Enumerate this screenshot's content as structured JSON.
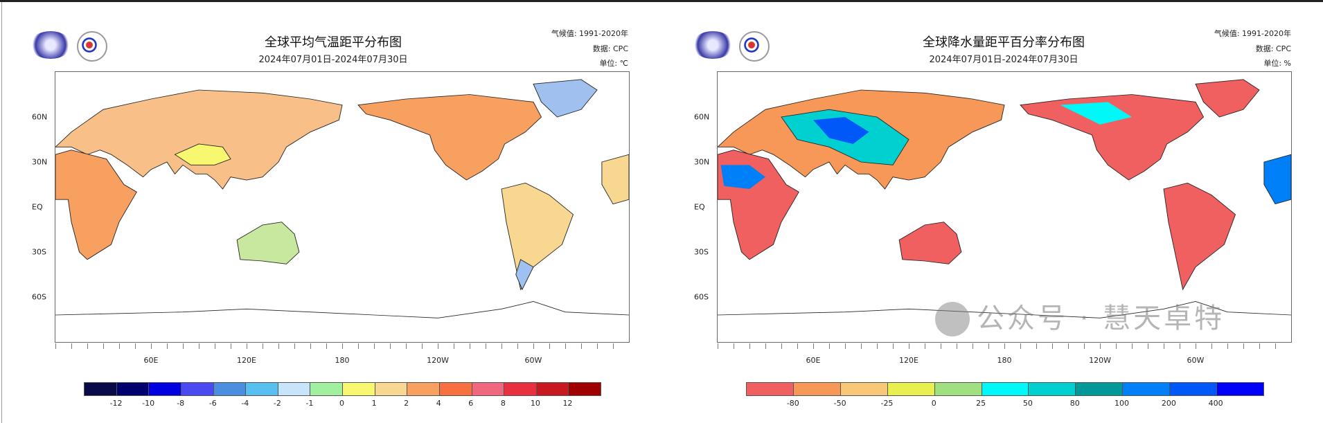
{
  "watermark": "公众号 · 慧天卓特",
  "lat_labels": [
    "60N",
    "30N",
    "EQ",
    "30S",
    "60S"
  ],
  "lon_labels": [
    "60E",
    "120E",
    "180",
    "120W",
    "60W"
  ],
  "chart_data": [
    {
      "type": "heatmap",
      "title": "全球平均气温距平分布图",
      "subtitle": "2024年07月01日-2024年07月30日",
      "info": {
        "climatology": "气候值: 1991-2020年",
        "source": "数据: CPC",
        "unit": "单位: ℃"
      },
      "xlim": [
        "0",
        "360"
      ],
      "ylim": [
        "90S",
        "90N"
      ],
      "projection": "equirectangular, 0-360E",
      "colorbar": {
        "labels": [
          "-12",
          "-10",
          "-8",
          "-6",
          "-4",
          "-2",
          "-1",
          "0",
          "1",
          "2",
          "4",
          "6",
          "8",
          "10",
          "12"
        ],
        "colors": [
          "#0a0a48",
          "#00006e",
          "#0000e0",
          "#4a4af0",
          "#4a8ee0",
          "#58c0f0",
          "#c8e4fa",
          "#a0f0a0",
          "#f8f870",
          "#f8d890",
          "#f8a060",
          "#f87040",
          "#f06880",
          "#e83040",
          "#c81820",
          "#a00000"
        ]
      },
      "dominant": "land mostly +1 to +4 ℃ anomaly; cool patches in northern Canada/Greenland and southern South America"
    },
    {
      "type": "heatmap",
      "title": "全球降水量距平百分率分布图",
      "subtitle": "2024年07月01日-2024年07月30日",
      "info": {
        "climatology": "气候值: 1991-2020年",
        "source": "数据: CPC",
        "unit": "单位: %"
      },
      "xlim": [
        "0",
        "360"
      ],
      "ylim": [
        "90S",
        "90N"
      ],
      "projection": "equirectangular, 0-360E",
      "colorbar": {
        "labels": [
          "-80",
          "-50",
          "-25",
          "0",
          "25",
          "50",
          "80",
          "100",
          "200",
          "400"
        ],
        "colors": [
          "#f06060",
          "#f89858",
          "#f8c878",
          "#e8f050",
          "#a0e080",
          "#00f8f8",
          "#00d0d0",
          "#009898",
          "#0080f8",
          "#0058f8",
          "#0000f8"
        ]
      },
      "dominant": "dry (-80%) over Africa, South America, Australia, western North America; wet patches over Sahel, South Asia, China"
    }
  ]
}
